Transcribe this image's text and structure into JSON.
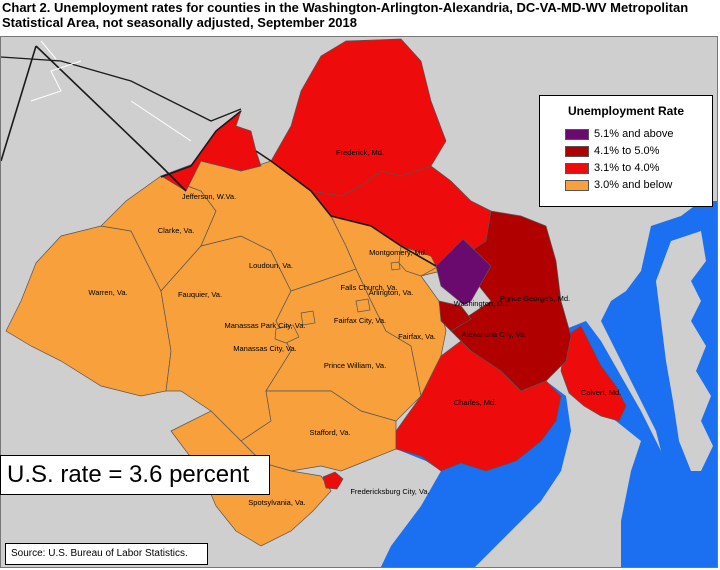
{
  "title": "Chart 2. Unemployment rates for counties in the Washington-Arlington-Alexandria, DC-VA-MD-WV Metropolitan Statistical Area, not seasonally adjusted, September 2018",
  "legend": {
    "title": "Unemployment Rate",
    "items": [
      {
        "label": "5.1% and above",
        "color": "#6b0a6e"
      },
      {
        "label": "4.1% to 5.0%",
        "color": "#b00000"
      },
      {
        "label": "3.1% to 4.0%",
        "color": "#ee0b0b"
      },
      {
        "label": "3.0% and below",
        "color": "#f7a03c"
      }
    ]
  },
  "us_rate": "U.S. rate = 3.6 percent",
  "source": "Source: U.S. Bureau of Labor Statistics.",
  "colors": {
    "water": "#1a70f0",
    "background": "#cfcfcf",
    "border": "#555555"
  },
  "counties": [
    {
      "name": "Frederick, Md.",
      "category": "3.1% to 4.0%"
    },
    {
      "name": "Jefferson, W.Va.",
      "category": "3.1% to 4.0%"
    },
    {
      "name": "Montgomery, Md.",
      "category": "3.1% to 4.0%"
    },
    {
      "name": "Clarke, Va.",
      "category": "3.0% and below"
    },
    {
      "name": "Loudoun, Va.",
      "category": "3.0% and below"
    },
    {
      "name": "Arlington, Va.",
      "category": "3.0% and below"
    },
    {
      "name": "Prince George's, Md.",
      "category": "4.1% to 5.0%"
    },
    {
      "name": "Falls Church, Va.",
      "category": "3.0% and below"
    },
    {
      "name": "Warren, Va.",
      "category": "3.0% and below"
    },
    {
      "name": "Fauquier, Va.",
      "category": "3.0% and below"
    },
    {
      "name": "Washington, D.C.",
      "category": "5.1% and above"
    },
    {
      "name": "Fairfax City, Va.",
      "category": "3.0% and below"
    },
    {
      "name": "Manassas Park City, Va.",
      "category": "3.0% and below"
    },
    {
      "name": "Fairfax, Va.",
      "category": "3.0% and below"
    },
    {
      "name": "Alexandria City, Va.",
      "category": "4.1% to 5.0%"
    },
    {
      "name": "Manassas City, Va.",
      "category": "3.0% and below"
    },
    {
      "name": "Prince William, Va.",
      "category": "3.0% and below"
    },
    {
      "name": "Charles, Md.",
      "category": "3.1% to 4.0%"
    },
    {
      "name": "Calvert, Md.",
      "category": "3.1% to 4.0%"
    },
    {
      "name": "Stafford, Va.",
      "category": "3.0% and below"
    },
    {
      "name": "Fredericksburg City, Va.",
      "category": "3.1% to 4.0%"
    },
    {
      "name": "Spotsylvania, Va.",
      "category": "3.0% and below"
    }
  ]
}
